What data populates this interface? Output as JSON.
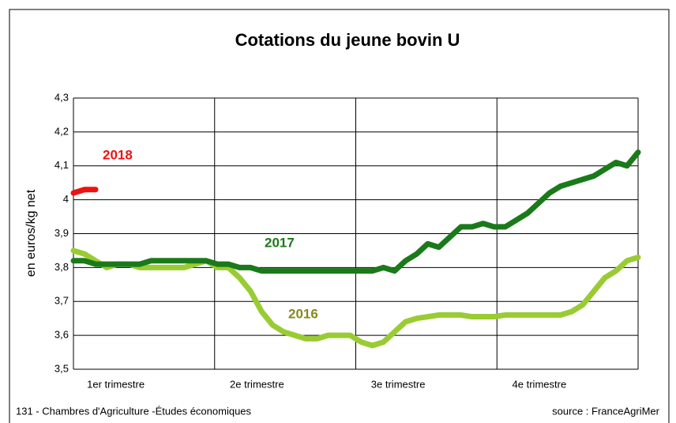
{
  "chart_data": {
    "type": "line",
    "title": "Cotations du jeune bovin U",
    "y_label": "en euros/kg net",
    "quarters": [
      "1er trimestre",
      "2e trimestre",
      "3e trimestre",
      "4e trimestre"
    ],
    "x": [
      1,
      2,
      3,
      4,
      5,
      6,
      7,
      8,
      9,
      10,
      11,
      12,
      13,
      14,
      15,
      16,
      17,
      18,
      19,
      20,
      21,
      22,
      23,
      24,
      25,
      26,
      27,
      28,
      29,
      30,
      31,
      32,
      33,
      34,
      35,
      36,
      37,
      38,
      39,
      40,
      41,
      42,
      43,
      44,
      45,
      46,
      47,
      48,
      49,
      50,
      51,
      52
    ],
    "xlim": [
      1,
      52
    ],
    "ylim": [
      3.5,
      4.3
    ],
    "yticks": [
      {
        "value": 3.5,
        "label": "3,5"
      },
      {
        "value": 3.6,
        "label": "3,6"
      },
      {
        "value": 3.7,
        "label": "3,7"
      },
      {
        "value": 3.8,
        "label": "3,8"
      },
      {
        "value": 3.9,
        "label": "3,9"
      },
      4,
      {
        "value": 4.1,
        "label": "4,1"
      },
      {
        "value": 4.2,
        "label": "4,2"
      },
      {
        "value": 4.3,
        "label": "4,3"
      }
    ],
    "grid": true,
    "series": [
      {
        "name": "2016",
        "color": "#99cc33",
        "values": [
          3.85,
          3.84,
          3.82,
          3.8,
          3.81,
          3.81,
          3.8,
          3.8,
          3.8,
          3.8,
          3.8,
          3.81,
          3.82,
          3.8,
          3.8,
          3.77,
          3.73,
          3.67,
          3.63,
          3.61,
          3.6,
          3.59,
          3.59,
          3.6,
          3.6,
          3.6,
          3.58,
          3.57,
          3.58,
          3.61,
          3.64,
          3.65,
          3.655,
          3.66,
          3.66,
          3.66,
          3.655,
          3.655,
          3.655,
          3.66,
          3.66,
          3.66,
          3.66,
          3.66,
          3.66,
          3.67,
          3.69,
          3.73,
          3.77,
          3.79,
          3.82,
          3.83
        ]
      },
      {
        "name": "2017",
        "color": "#1a7a1a",
        "values": [
          3.82,
          3.82,
          3.81,
          3.81,
          3.81,
          3.81,
          3.81,
          3.82,
          3.82,
          3.82,
          3.82,
          3.82,
          3.82,
          3.81,
          3.81,
          3.8,
          3.8,
          3.79,
          3.79,
          3.79,
          3.79,
          3.79,
          3.79,
          3.79,
          3.79,
          3.79,
          3.79,
          3.79,
          3.8,
          3.79,
          3.82,
          3.84,
          3.87,
          3.86,
          3.89,
          3.92,
          3.92,
          3.93,
          3.92,
          3.92,
          3.94,
          3.96,
          3.99,
          4.02,
          4.04,
          4.05,
          4.06,
          4.07,
          4.09,
          4.11,
          4.1,
          4.14
        ]
      },
      {
        "name": "2018",
        "color": "#ee1111",
        "values": [
          4.02,
          4.03,
          4.03,
          null,
          null,
          null,
          null,
          null,
          null,
          null,
          null,
          null,
          null,
          null,
          null,
          null,
          null,
          null,
          null,
          null,
          null,
          null,
          null,
          null,
          null,
          null,
          null,
          null,
          null,
          null,
          null,
          null,
          null,
          null,
          null,
          null,
          null,
          null,
          null,
          null,
          null,
          null,
          null,
          null,
          null,
          null,
          null,
          null,
          null,
          null,
          null,
          null
        ]
      }
    ],
    "footer": "131 - Chambres d'Agriculture -Études économiques",
    "source": "source : FranceAgriMer"
  }
}
